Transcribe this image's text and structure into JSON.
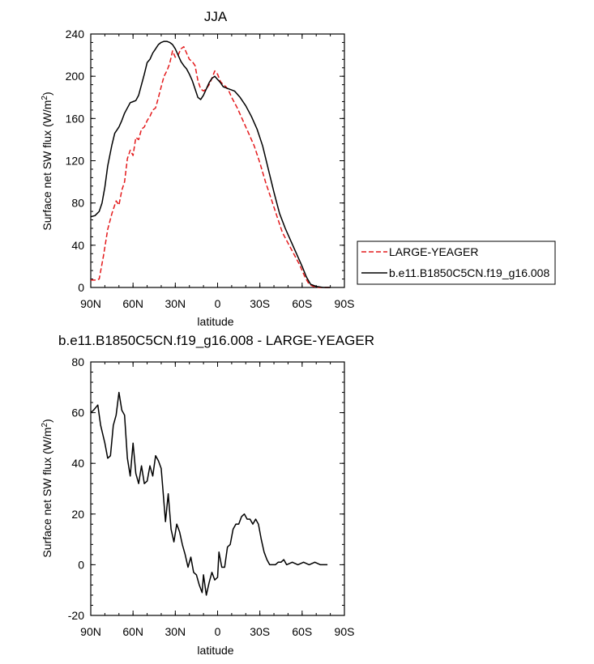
{
  "chart_data": [
    {
      "type": "line",
      "title": "JJA",
      "xlabel": "latitude",
      "ylabel": "Surface net SW flux (W/m²)",
      "ylabel_main": "Surface net SW flux (W/m",
      "ylabel_sup": "2",
      "ylabel_end": ")",
      "xlim": [
        90,
        -90
      ],
      "ylim": [
        0,
        240
      ],
      "xticks": [
        {
          "value": 90,
          "label": "90N"
        },
        {
          "value": 60,
          "label": "60N"
        },
        {
          "value": 30,
          "label": "30N"
        },
        {
          "value": 0,
          "label": "0"
        },
        {
          "value": -30,
          "label": "30S"
        },
        {
          "value": -60,
          "label": "60S"
        },
        {
          "value": -90,
          "label": "90S"
        }
      ],
      "yticks": [
        0,
        40,
        80,
        120,
        160,
        200,
        240
      ],
      "legend": {
        "placement": "right",
        "entries": [
          {
            "label": "LARGE-YEAGER",
            "color": "#e41a1c",
            "dash": "dashed"
          },
          {
            "label": "b.e11.B1850C5CN.f19_g16.008",
            "color": "#000000",
            "dash": "solid"
          }
        ]
      },
      "series": [
        {
          "name": "LARGE-YEAGER",
          "color": "#e41a1c",
          "dash": "dashed",
          "points": [
            [
              90,
              7
            ],
            [
              87,
              7
            ],
            [
              84,
              8
            ],
            [
              81,
              30
            ],
            [
              78,
              55
            ],
            [
              75,
              70
            ],
            [
              72,
              82
            ],
            [
              70,
              78
            ],
            [
              68,
              92
            ],
            [
              66,
              100
            ],
            [
              64,
              122
            ],
            [
              62,
              130
            ],
            [
              60,
              125
            ],
            [
              58,
              142
            ],
            [
              56,
              140
            ],
            [
              54,
              150
            ],
            [
              52,
              152
            ],
            [
              50,
              158
            ],
            [
              48,
              162
            ],
            [
              46,
              168
            ],
            [
              44,
              170
            ],
            [
              42,
              180
            ],
            [
              40,
              190
            ],
            [
              38,
              200
            ],
            [
              36,
              205
            ],
            [
              34,
              212
            ],
            [
              32,
              224
            ],
            [
              30,
              218
            ],
            [
              28,
              220
            ],
            [
              26,
              226
            ],
            [
              24,
              228
            ],
            [
              22,
              222
            ],
            [
              20,
              216
            ],
            [
              18,
              214
            ],
            [
              16,
              210
            ],
            [
              14,
              196
            ],
            [
              12,
              188
            ],
            [
              10,
              186
            ],
            [
              8,
              188
            ],
            [
              6,
              192
            ],
            [
              4,
              198
            ],
            [
              2,
              205
            ],
            [
              0,
              202
            ],
            [
              -2,
              195
            ],
            [
              -4,
              192
            ],
            [
              -6,
              190
            ],
            [
              -8,
              186
            ],
            [
              -10,
              180
            ],
            [
              -14,
              170
            ],
            [
              -18,
              158
            ],
            [
              -22,
              146
            ],
            [
              -26,
              134
            ],
            [
              -30,
              118
            ],
            [
              -34,
              100
            ],
            [
              -38,
              84
            ],
            [
              -42,
              68
            ],
            [
              -46,
              52
            ],
            [
              -50,
              42
            ],
            [
              -54,
              32
            ],
            [
              -58,
              22
            ],
            [
              -62,
              10
            ],
            [
              -65,
              3
            ],
            [
              -68,
              1
            ],
            [
              -72,
              0
            ],
            [
              -80,
              0
            ]
          ]
        },
        {
          "name": "b.e11.B1850C5CN.f19_g16.008",
          "color": "#000000",
          "dash": "solid",
          "points": [
            [
              90,
              67
            ],
            [
              87,
              68
            ],
            [
              84,
              72
            ],
            [
              82,
              80
            ],
            [
              80,
              95
            ],
            [
              78,
              115
            ],
            [
              75,
              135
            ],
            [
              73,
              146
            ],
            [
              70,
              152
            ],
            [
              68,
              158
            ],
            [
              66,
              165
            ],
            [
              64,
              170
            ],
            [
              62,
              175
            ],
            [
              60,
              176
            ],
            [
              58,
              177
            ],
            [
              56,
              182
            ],
            [
              54,
              192
            ],
            [
              52,
              202
            ],
            [
              50,
              213
            ],
            [
              48,
              216
            ],
            [
              46,
              222
            ],
            [
              44,
              226
            ],
            [
              42,
              230
            ],
            [
              40,
              232
            ],
            [
              38,
              233
            ],
            [
              36,
              233
            ],
            [
              34,
              232
            ],
            [
              32,
              230
            ],
            [
              30,
              226
            ],
            [
              28,
              220
            ],
            [
              26,
              214
            ],
            [
              24,
              210
            ],
            [
              22,
              207
            ],
            [
              20,
              202
            ],
            [
              18,
              196
            ],
            [
              16,
              188
            ],
            [
              14,
              180
            ],
            [
              12,
              178
            ],
            [
              10,
              182
            ],
            [
              8,
              188
            ],
            [
              6,
              194
            ],
            [
              4,
              198
            ],
            [
              2,
              200
            ],
            [
              0,
              197
            ],
            [
              -2,
              194
            ],
            [
              -4,
              190
            ],
            [
              -8,
              188
            ],
            [
              -12,
              186
            ],
            [
              -16,
              180
            ],
            [
              -20,
              172
            ],
            [
              -24,
              162
            ],
            [
              -28,
              150
            ],
            [
              -32,
              134
            ],
            [
              -36,
              112
            ],
            [
              -40,
              90
            ],
            [
              -44,
              70
            ],
            [
              -48,
              56
            ],
            [
              -52,
              44
            ],
            [
              -56,
              32
            ],
            [
              -60,
              20
            ],
            [
              -63,
              10
            ],
            [
              -66,
              3
            ],
            [
              -70,
              1
            ],
            [
              -75,
              0
            ],
            [
              -80,
              0
            ]
          ]
        }
      ]
    },
    {
      "type": "line",
      "title": "b.e11.B1850C5CN.f19_g16.008 - LARGE-YEAGER",
      "xlabel": "latitude",
      "ylabel": "Surface net SW flux (W/m²)",
      "ylabel_main": "Surface net SW flux (W/m",
      "ylabel_sup": "2",
      "ylabel_end": ")",
      "xlim": [
        90,
        -90
      ],
      "ylim": [
        -20,
        80
      ],
      "xticks": [
        {
          "value": 90,
          "label": "90N"
        },
        {
          "value": 60,
          "label": "60N"
        },
        {
          "value": 30,
          "label": "30N"
        },
        {
          "value": 0,
          "label": "0"
        },
        {
          "value": -30,
          "label": "30S"
        },
        {
          "value": -60,
          "label": "60S"
        },
        {
          "value": -90,
          "label": "90S"
        }
      ],
      "yticks": [
        -20,
        0,
        20,
        40,
        60,
        80
      ],
      "series": [
        {
          "name": "b.e11.B1850C5CN.f19_g16.008 - LARGE-YEAGER",
          "color": "#000000",
          "dash": "solid",
          "points": [
            [
              90,
              60
            ],
            [
              88,
              61
            ],
            [
              85,
              63
            ],
            [
              83,
              55
            ],
            [
              80,
              48
            ],
            [
              78,
              42
            ],
            [
              76,
              43
            ],
            [
              74,
              55
            ],
            [
              72,
              59
            ],
            [
              70,
              68
            ],
            [
              68,
              61
            ],
            [
              66,
              59
            ],
            [
              64,
              42
            ],
            [
              62,
              35
            ],
            [
              60,
              48
            ],
            [
              58,
              36
            ],
            [
              56,
              32
            ],
            [
              54,
              39
            ],
            [
              52,
              32
            ],
            [
              50,
              33
            ],
            [
              48,
              39
            ],
            [
              46,
              35
            ],
            [
              44,
              43
            ],
            [
              42,
              41
            ],
            [
              40,
              38
            ],
            [
              39,
              31
            ],
            [
              37,
              17
            ],
            [
              35,
              28
            ],
            [
              33,
              14
            ],
            [
              31,
              9
            ],
            [
              29,
              16
            ],
            [
              27,
              13
            ],
            [
              25,
              8
            ],
            [
              23,
              4
            ],
            [
              21,
              -1
            ],
            [
              19,
              3
            ],
            [
              17,
              -3
            ],
            [
              15,
              -4
            ],
            [
              13,
              -8
            ],
            [
              11,
              -11
            ],
            [
              10,
              -4
            ],
            [
              8,
              -12
            ],
            [
              6,
              -7
            ],
            [
              4,
              -3
            ],
            [
              2,
              -6
            ],
            [
              0,
              -5
            ],
            [
              -1,
              5
            ],
            [
              -3,
              -1
            ],
            [
              -5,
              -1
            ],
            [
              -7,
              7
            ],
            [
              -9,
              8
            ],
            [
              -11,
              14
            ],
            [
              -13,
              16
            ],
            [
              -15,
              16
            ],
            [
              -17,
              19
            ],
            [
              -19,
              20
            ],
            [
              -21,
              18
            ],
            [
              -23,
              18
            ],
            [
              -25,
              16
            ],
            [
              -27,
              18
            ],
            [
              -29,
              16
            ],
            [
              -31,
              10
            ],
            [
              -33,
              5
            ],
            [
              -35,
              2
            ],
            [
              -37,
              0
            ],
            [
              -41,
              0
            ],
            [
              -43,
              1
            ],
            [
              -45,
              1
            ],
            [
              -47,
              2
            ],
            [
              -49,
              0
            ],
            [
              -53,
              1
            ],
            [
              -57,
              0
            ],
            [
              -61,
              1
            ],
            [
              -65,
              0
            ],
            [
              -69,
              1
            ],
            [
              -73,
              0
            ],
            [
              -78,
              0
            ]
          ]
        }
      ]
    }
  ]
}
